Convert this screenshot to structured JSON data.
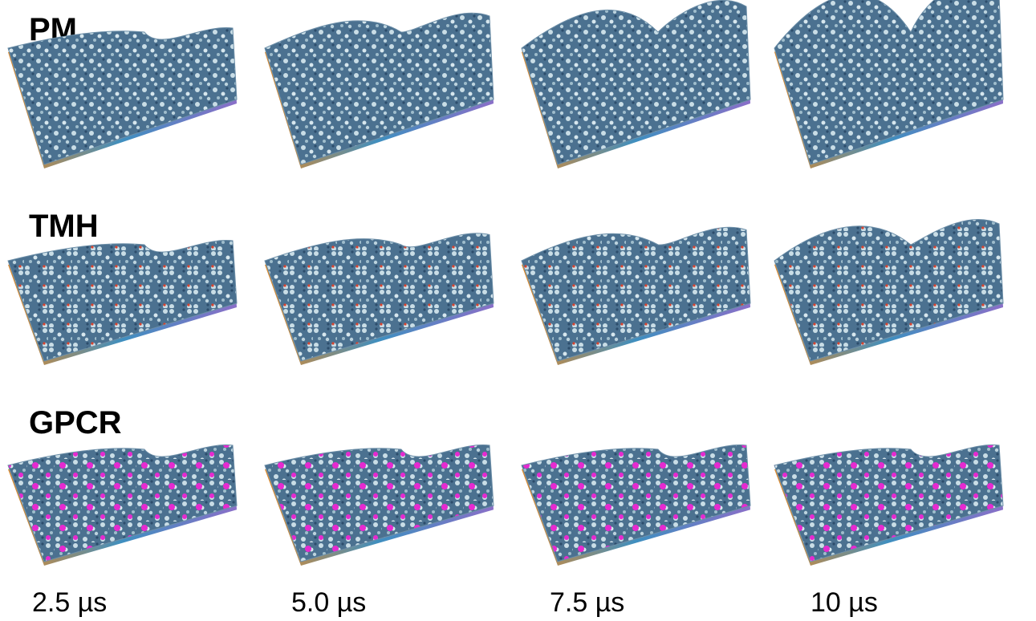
{
  "row_labels": [
    "PM",
    "TMH",
    "GPCR"
  ],
  "time_labels": [
    "2.5 µs",
    "5.0 µs",
    "7.5 µs",
    "10 µs"
  ]
}
